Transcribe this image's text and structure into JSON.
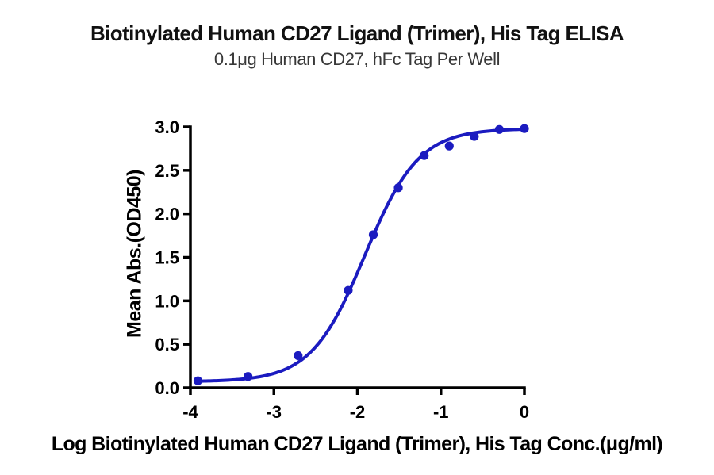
{
  "chart_data": {
    "type": "scatter",
    "title": "Biotinylated Human CD27 Ligand (Trimer), His Tag ELISA",
    "subtitle": "0.1μg Human CD27, hFc Tag Per Well",
    "xlabel": "Log Biotinylated Human CD27 Ligand (Trimer), His Tag Conc.(μg/ml)",
    "ylabel": "Mean Abs.(OD450)",
    "xlim": [
      -4,
      0
    ],
    "ylim": [
      0,
      3
    ],
    "grid": false,
    "legend": "none",
    "x_ticks": [
      {
        "value": -4,
        "label": "-4"
      },
      {
        "value": -3,
        "label": "-3"
      },
      {
        "value": -2,
        "label": "-2"
      },
      {
        "value": -1,
        "label": "-1"
      },
      {
        "value": 0,
        "label": "0"
      }
    ],
    "y_ticks": [
      {
        "value": 0.0,
        "label": "0.0"
      },
      {
        "value": 0.5,
        "label": "0.5"
      },
      {
        "value": 1.0,
        "label": "1.0"
      },
      {
        "value": 1.5,
        "label": "1.5"
      },
      {
        "value": 2.0,
        "label": "2.0"
      },
      {
        "value": 2.5,
        "label": "2.5"
      },
      {
        "value": 3.0,
        "label": "3.0"
      }
    ],
    "series": [
      {
        "name": "Biotinylated Human CD27 Ligand (Trimer), His Tag",
        "marker": "circle",
        "points": [
          {
            "x": -3.91,
            "y": 0.08
          },
          {
            "x": -3.31,
            "y": 0.13
          },
          {
            "x": -2.71,
            "y": 0.37
          },
          {
            "x": -2.11,
            "y": 1.12
          },
          {
            "x": -1.81,
            "y": 1.76
          },
          {
            "x": -1.51,
            "y": 2.3
          },
          {
            "x": -1.2,
            "y": 2.67
          },
          {
            "x": -0.9,
            "y": 2.78
          },
          {
            "x": -0.6,
            "y": 2.89
          },
          {
            "x": -0.3,
            "y": 2.97
          },
          {
            "x": 0.0,
            "y": 2.98
          }
        ],
        "fit_curve": {
          "model": "4PL",
          "bottom": 0.07,
          "top": 2.98,
          "log_ec50": -1.91,
          "hill_slope": 1.35
        }
      }
    ],
    "colors": {
      "curve": "#1b1bc0",
      "marker": "#1b1bc0",
      "axis": "#000000",
      "background": "#ffffff"
    }
  }
}
